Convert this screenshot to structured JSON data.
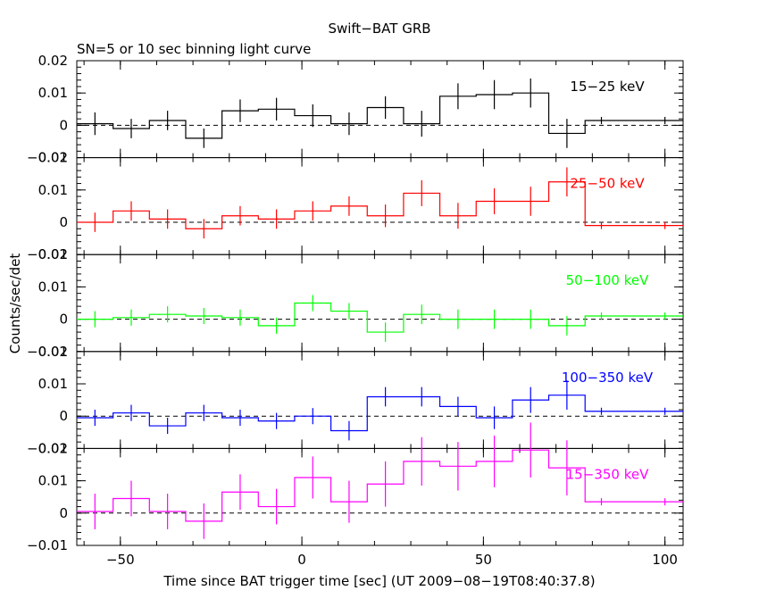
{
  "chart_data": {
    "type": "line",
    "title": "Swift−BAT GRB",
    "subtitle": "SN=5 or 10 sec binning light curve",
    "xlabel": "Time since BAT trigger time [sec] (UT 2009−08−19T08:40:37.8)",
    "ylabel": "Counts/sec/det",
    "xlim": [
      -62,
      105
    ],
    "x_ticks": [
      "−50",
      "0",
      "50",
      "100"
    ],
    "x_tick_values": [
      -50,
      0,
      50,
      100
    ],
    "grid": false,
    "bin_edges": [
      -62,
      -52,
      -42,
      -32,
      -22,
      -12,
      -2,
      8,
      18,
      28,
      38,
      48,
      58,
      68,
      78,
      87,
      105
    ],
    "bin_centers": [
      -57,
      -47,
      -37,
      -27,
      -17,
      -7,
      3,
      13,
      23,
      33,
      43,
      53,
      63,
      73,
      82.5,
      100
    ],
    "panels": [
      {
        "name": "15−25 keV",
        "color": "#000000",
        "ylim": [
          -0.01,
          0.02
        ],
        "y_ticks": [
          "−0.01",
          "0",
          "0.01",
          "0.02"
        ],
        "y_tick_values": [
          -0.01,
          0,
          0.01,
          0.02
        ],
        "values": [
          0.0005,
          -0.001,
          0.0015,
          -0.004,
          0.0045,
          0.005,
          0.003,
          0.0005,
          0.0055,
          0.0005,
          0.009,
          0.0095,
          0.01,
          -0.0025,
          0.0015,
          0.0015
        ],
        "errors": [
          0.0035,
          0.003,
          0.003,
          0.003,
          0.0035,
          0.0035,
          0.0035,
          0.0035,
          0.0035,
          0.004,
          0.004,
          0.0045,
          0.0045,
          0.0045,
          0.0,
          0.0
        ]
      },
      {
        "name": "25−50 keV",
        "color": "#ff0000",
        "ylim": [
          -0.01,
          0.02
        ],
        "y_ticks": [
          "−0.01",
          "0",
          "0.01",
          "0.02"
        ],
        "y_tick_values": [
          -0.01,
          0,
          0.01,
          0.02
        ],
        "values": [
          0.0,
          0.0035,
          0.001,
          -0.002,
          0.002,
          0.001,
          0.0035,
          0.005,
          0.002,
          0.009,
          0.002,
          0.0065,
          0.0065,
          0.0125,
          -0.001,
          -0.001
        ],
        "errors": [
          0.003,
          0.003,
          0.003,
          0.003,
          0.003,
          0.003,
          0.003,
          0.003,
          0.0035,
          0.004,
          0.004,
          0.004,
          0.0045,
          0.0045,
          0.0,
          0.0
        ]
      },
      {
        "name": "50−100 keV",
        "color": "#00ff00",
        "ylim": [
          -0.01,
          0.02
        ],
        "y_ticks": [
          "−0.01",
          "0",
          "0.01",
          "0.02"
        ],
        "y_tick_values": [
          -0.01,
          0,
          0.01,
          0.02
        ],
        "values": [
          0.0,
          0.0005,
          0.0015,
          0.001,
          0.0005,
          -0.002,
          0.005,
          0.0025,
          -0.004,
          0.0015,
          0.0,
          0.0,
          0.0,
          -0.002,
          0.001,
          0.001
        ],
        "errors": [
          0.0025,
          0.0025,
          0.0025,
          0.0025,
          0.0025,
          0.0025,
          0.0025,
          0.0025,
          0.003,
          0.003,
          0.003,
          0.003,
          0.003,
          0.003,
          0.0,
          0.0
        ]
      },
      {
        "name": "100−350 keV",
        "color": "#0000ff",
        "ylim": [
          -0.01,
          0.02
        ],
        "y_ticks": [
          "−0.01",
          "0",
          "0.01",
          "0.02"
        ],
        "y_tick_values": [
          -0.01,
          0,
          0.01,
          0.02
        ],
        "values": [
          -0.0005,
          0.001,
          -0.003,
          0.001,
          -0.0005,
          -0.0015,
          0.0,
          -0.0045,
          0.006,
          0.006,
          0.003,
          -0.0005,
          0.005,
          0.0065,
          0.0015,
          0.0015
        ],
        "errors": [
          0.0025,
          0.0025,
          0.0025,
          0.0025,
          0.0025,
          0.0025,
          0.0025,
          0.003,
          0.003,
          0.003,
          0.003,
          0.0035,
          0.004,
          0.0045,
          0.0,
          0.0
        ]
      },
      {
        "name": "15−350 keV",
        "color": "#ff00ff",
        "ylim": [
          -0.01,
          0.02
        ],
        "y_ticks": [
          "−0.01",
          "0",
          "0.01",
          "0.02"
        ],
        "y_tick_values": [
          -0.01,
          0,
          0.01,
          0.02
        ],
        "values": [
          0.0005,
          0.0045,
          0.0005,
          -0.0025,
          0.0065,
          0.002,
          0.011,
          0.0035,
          0.009,
          0.016,
          0.0145,
          0.016,
          0.0195,
          0.014,
          0.0035,
          0.0035
        ],
        "errors": [
          0.0055,
          0.0055,
          0.0055,
          0.0055,
          0.0055,
          0.0055,
          0.0065,
          0.0065,
          0.007,
          0.0075,
          0.0075,
          0.008,
          0.0085,
          0.0085,
          0.0,
          0.0
        ]
      }
    ]
  }
}
